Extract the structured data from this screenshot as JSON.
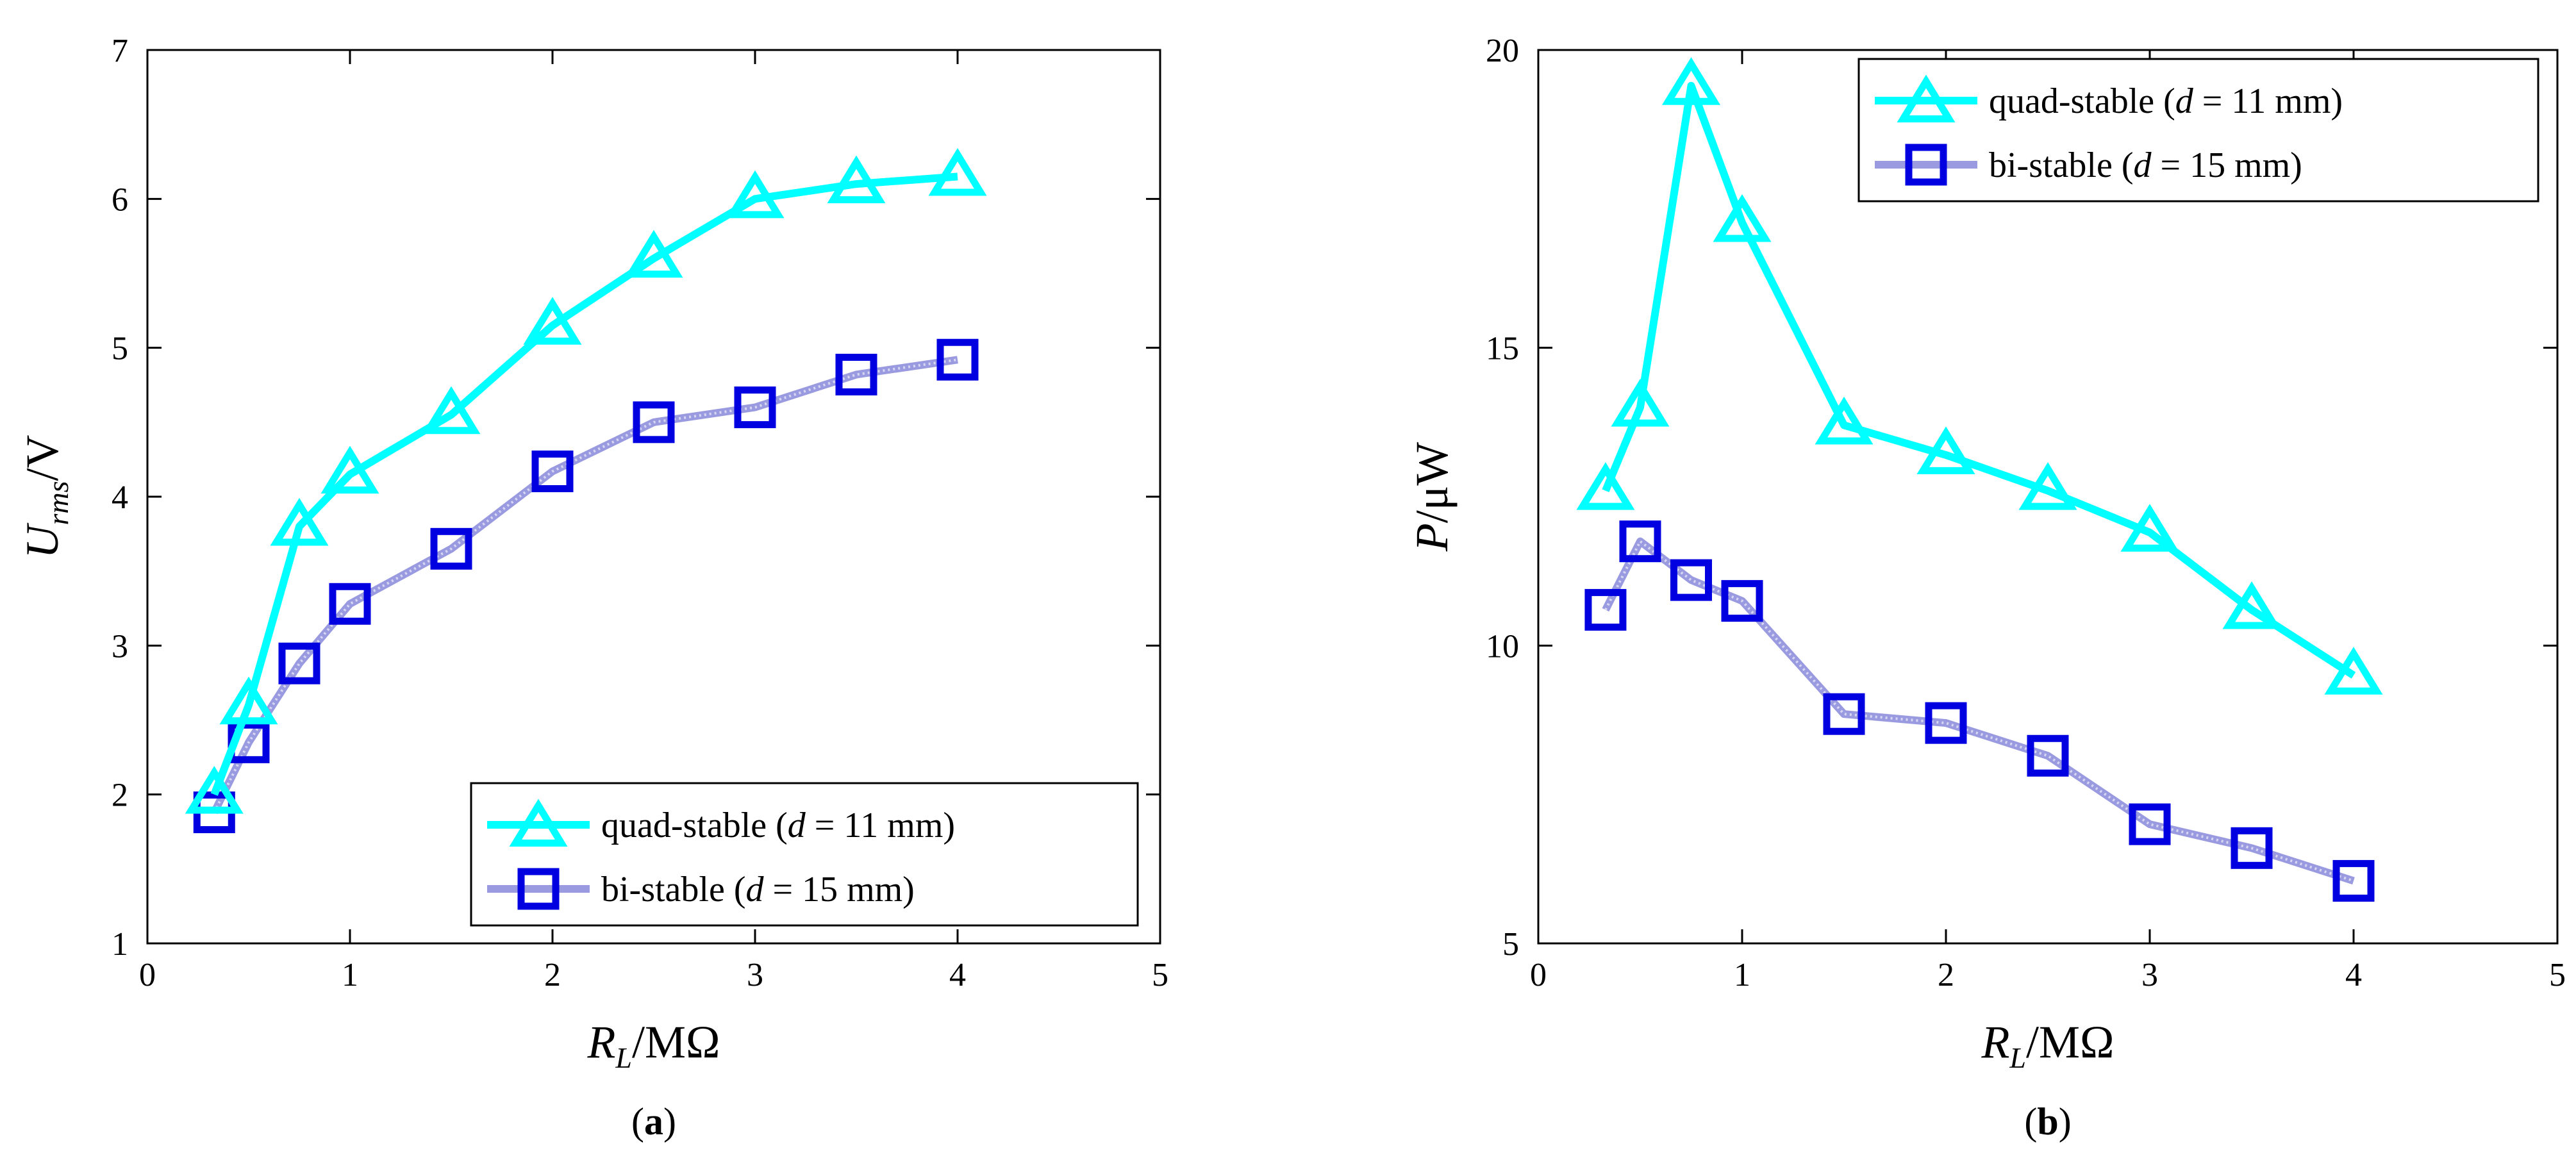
{
  "colors": {
    "quad_stable": "#00ffff",
    "bi_stable_edge": "#0000e0",
    "bi_stable_line": "#9a9ae0",
    "axis": "#000000",
    "background": "#ffffff"
  },
  "chart_data": [
    {
      "type": "line",
      "panel": "a",
      "caption_letter": "a",
      "xlabel": {
        "main": "R",
        "sub": "L",
        "rest": "/MΩ"
      },
      "ylabel": {
        "main": "U",
        "sub": "rms",
        "rest": "/V"
      },
      "xlim": [
        0,
        5
      ],
      "ylim": [
        1,
        7
      ],
      "xticks": [
        "0",
        "1",
        "2",
        "3",
        "4",
        "5"
      ],
      "yticks": [
        "1",
        "2",
        "3",
        "4",
        "5",
        "6",
        "7"
      ],
      "grid": false,
      "legend_position": "bottom-right",
      "series": [
        {
          "name": "quad-stable",
          "legend": {
            "prefix": "quad-stable (",
            "italic": "d",
            "suffix": " = 11 mm)"
          },
          "marker": "triangle",
          "x": [
            0.33,
            0.5,
            0.75,
            1.0,
            1.5,
            2.0,
            2.5,
            3.0,
            3.5,
            4.0
          ],
          "y": [
            2.0,
            2.6,
            3.8,
            4.15,
            4.55,
            5.15,
            5.6,
            6.0,
            6.1,
            6.15
          ]
        },
        {
          "name": "bi-stable",
          "legend": {
            "prefix": "bi-stable (",
            "italic": "d",
            "suffix": " = 15 mm)"
          },
          "marker": "square",
          "x": [
            0.33,
            0.5,
            0.75,
            1.0,
            1.5,
            2.0,
            2.5,
            3.0,
            3.5,
            4.0
          ],
          "y": [
            1.88,
            2.35,
            2.88,
            3.28,
            3.65,
            4.17,
            4.5,
            4.6,
            4.82,
            4.92
          ]
        }
      ]
    },
    {
      "type": "line",
      "panel": "b",
      "caption_letter": "b",
      "xlabel": {
        "main": "R",
        "sub": "L",
        "rest": "/MΩ"
      },
      "ylabel": {
        "main": "P",
        "sub": "",
        "rest": "/μW"
      },
      "xlim": [
        0,
        5
      ],
      "ylim": [
        5,
        20
      ],
      "xticks": [
        "0",
        "1",
        "2",
        "3",
        "4",
        "5"
      ],
      "yticks": [
        "5",
        "10",
        "15",
        "20"
      ],
      "grid": false,
      "legend_position": "top-right",
      "series": [
        {
          "name": "quad-stable",
          "legend": {
            "prefix": "quad-stable (",
            "italic": "d",
            "suffix": " = 11 mm)"
          },
          "marker": "triangle",
          "x": [
            0.33,
            0.5,
            0.75,
            1.0,
            1.5,
            2.0,
            2.5,
            3.0,
            3.5,
            4.0
          ],
          "y": [
            12.6,
            14.0,
            19.4,
            17.1,
            13.7,
            13.2,
            12.6,
            11.9,
            10.6,
            9.5
          ]
        },
        {
          "name": "bi-stable",
          "legend": {
            "prefix": "bi-stable (",
            "italic": "d",
            "suffix": " = 15 mm)"
          },
          "marker": "square",
          "x": [
            0.33,
            0.5,
            0.75,
            1.0,
            1.5,
            2.0,
            2.5,
            3.0,
            3.5,
            4.0
          ],
          "y": [
            10.6,
            11.75,
            11.1,
            10.75,
            8.85,
            8.7,
            8.15,
            7.0,
            6.6,
            6.05
          ]
        }
      ]
    }
  ]
}
